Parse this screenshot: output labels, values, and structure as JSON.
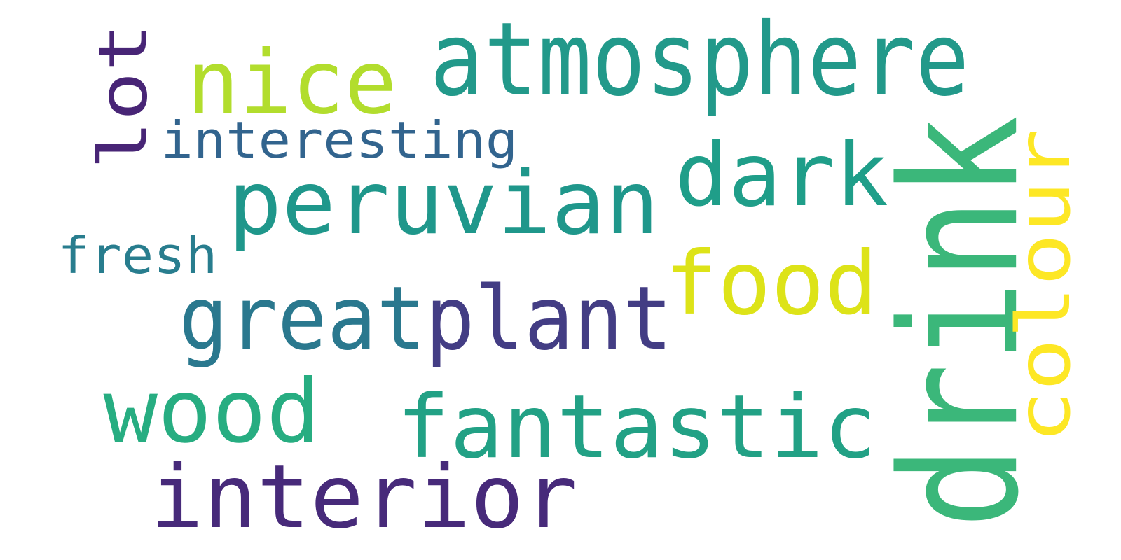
{
  "words": {
    "drink": {
      "text": "drink",
      "color": "#3bb77a"
    },
    "atmosphere": {
      "text": "atmosphere",
      "color": "#22998a"
    },
    "peruvian": {
      "text": "peruvian",
      "color": "#1f978b"
    },
    "interior": {
      "text": "interior",
      "color": "#472a7a"
    },
    "fantastic": {
      "text": "fantastic",
      "color": "#22a185"
    },
    "greatplant": {
      "text": "greatplant",
      "color": "#2a788e"
    },
    "plant": {
      "text": "plant",
      "color": "#433d84"
    },
    "wood": {
      "text": "wood",
      "color": "#27ad81"
    },
    "dark": {
      "text": "dark",
      "color": "#1f9e89"
    },
    "nice": {
      "text": "nice",
      "color": "#b2dd2d"
    },
    "food": {
      "text": "food",
      "color": "#dde318"
    },
    "colour": {
      "text": "colour",
      "color": "#fde725"
    },
    "lot": {
      "text": "lot",
      "color": "#482576"
    },
    "interesting": {
      "text": "interesting",
      "color": "#32648e"
    },
    "fresh": {
      "text": "fresh",
      "color": "#287d8e"
    }
  }
}
